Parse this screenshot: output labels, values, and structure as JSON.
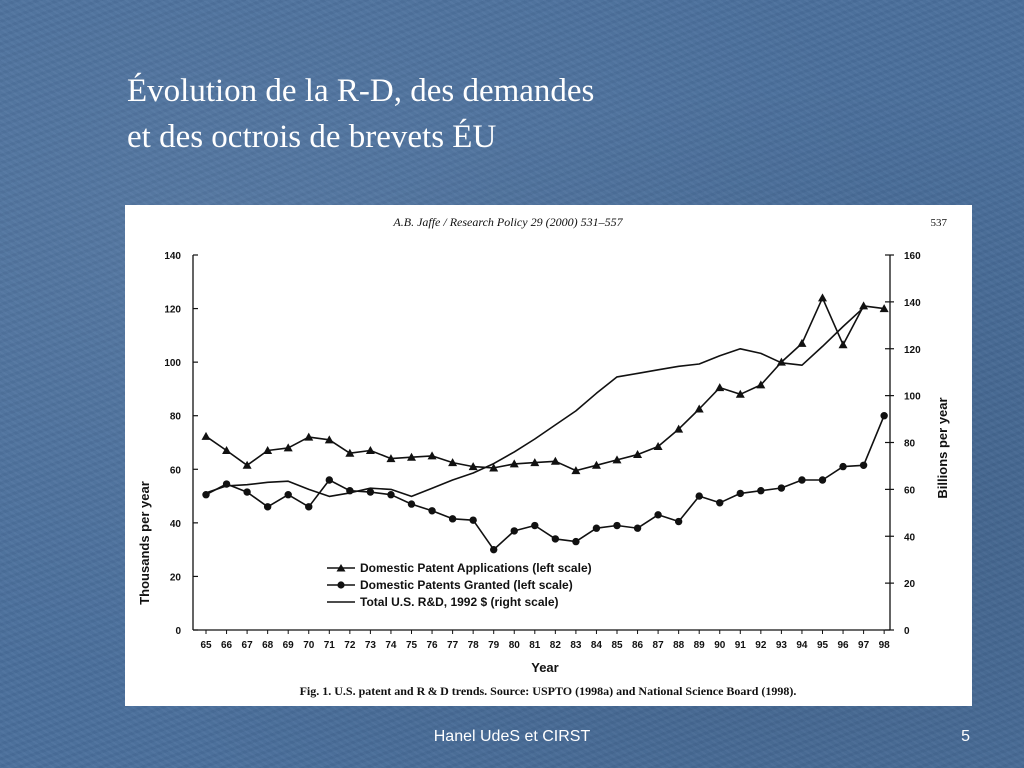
{
  "slide": {
    "title_line1": "Évolution de la R-D, des demandes",
    "title_line2": "et des octrois de brevets ÉU",
    "footer": "Hanel UdeS et CIRST",
    "page_number": "5"
  },
  "figure": {
    "header": "A.B. Jaffe / Research Policy 29 (2000) 531–557",
    "page": "537",
    "caption": "Fig. 1. U.S. patent and R & D trends. Source: USPTO (1998a) and National Science Board (1998)."
  },
  "chart_data": {
    "type": "line",
    "title": "",
    "xlabel": "Year",
    "ylabel": "Thousands per year",
    "y2label": "Billions per year",
    "ylim": [
      0,
      140
    ],
    "y2lim": [
      0,
      160
    ],
    "yticks": [
      "0",
      "20",
      "40",
      "60",
      "80",
      "100",
      "120",
      "140"
    ],
    "y2ticks": [
      "0",
      "20",
      "40",
      "60",
      "80",
      "100",
      "120",
      "140",
      "160"
    ],
    "categories": [
      "65",
      "66",
      "67",
      "68",
      "69",
      "70",
      "71",
      "72",
      "73",
      "74",
      "75",
      "76",
      "77",
      "78",
      "79",
      "80",
      "81",
      "82",
      "83",
      "84",
      "85",
      "86",
      "87",
      "88",
      "89",
      "90",
      "91",
      "92",
      "93",
      "94",
      "95",
      "96",
      "97",
      "98"
    ],
    "grid": false,
    "legend_position": "bottom-left",
    "series": [
      {
        "name": "Domestic Patent Applications (left scale)",
        "axis": "left",
        "marker": "triangle",
        "values": [
          72.3,
          67,
          61.5,
          67,
          68,
          72,
          71,
          66,
          67,
          64,
          64.5,
          65,
          62.5,
          61,
          60.5,
          62,
          62.5,
          63,
          59.5,
          61.5,
          63.5,
          65.5,
          68.5,
          75,
          82.5,
          90.5,
          88,
          91.5,
          100,
          107,
          124,
          106.5,
          121,
          120
        ]
      },
      {
        "name": "Domestic Patents Granted (left scale)",
        "axis": "left",
        "marker": "circle",
        "values": [
          50.5,
          54.5,
          51.5,
          46,
          50.5,
          46,
          56,
          52,
          51.5,
          50.5,
          47,
          44.5,
          41.5,
          41,
          30,
          37,
          39,
          34,
          33,
          38,
          39,
          38,
          43,
          40.5,
          50,
          47.5,
          51,
          52,
          53,
          56,
          56,
          61,
          61.5,
          80
        ]
      },
      {
        "name": "Total U.S. R&D, 1992 $ (right scale)",
        "axis": "right",
        "marker": "none",
        "values": [
          58.5,
          61.5,
          62,
          63,
          63.5,
          60,
          57,
          58.5,
          60.5,
          60,
          57,
          60.5,
          64,
          67,
          71,
          76,
          81.5,
          87.5,
          93.5,
          101,
          108,
          109.5,
          111,
          112.5,
          113.5,
          117,
          120,
          118,
          114,
          113,
          121,
          129.5,
          137.5,
          null
        ]
      }
    ]
  }
}
